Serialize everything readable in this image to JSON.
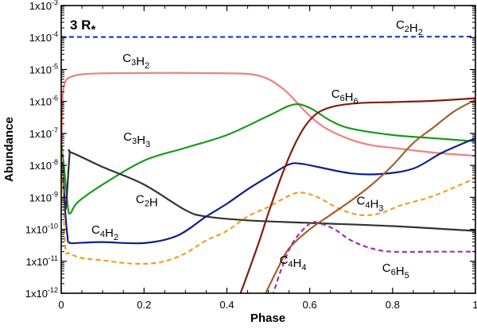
{
  "chart_data": {
    "type": "line",
    "title": "",
    "panel_label": "3 R",
    "panel_label_star": "*",
    "xlabel": "Phase",
    "ylabel": "Abundance",
    "xlim": [
      0,
      1
    ],
    "ylim_log10": [
      -12,
      -3
    ],
    "x_ticks": [
      0,
      0.2,
      0.4,
      0.6,
      0.8,
      1
    ],
    "x_tick_labels": [
      "0",
      "0.2",
      "0.4",
      "0.6",
      "0.8",
      "1"
    ],
    "y_tick_exponents": [
      -12,
      -11,
      -10,
      -9,
      -8,
      -7,
      -6,
      -5,
      -4,
      -3
    ],
    "y_tick_mantissa": "1x10",
    "y_scale": "log",
    "grid": false,
    "series": [
      {
        "key": "c2h2",
        "name": "C2H2",
        "label_main": [
          "C",
          "H"
        ],
        "label_subs": [
          "2",
          "2"
        ],
        "color": "#1a3fd0",
        "dash": true,
        "points": [
          [
            0,
            -3.98
          ],
          [
            0.1,
            -3.985
          ],
          [
            0.3,
            -3.985
          ],
          [
            0.5,
            -3.98
          ],
          [
            0.7,
            -3.975
          ],
          [
            0.85,
            -3.975
          ],
          [
            1,
            -3.97
          ]
        ]
      },
      {
        "key": "c3h2",
        "name": "C3H2",
        "label_main": [
          "C",
          "H"
        ],
        "label_subs": [
          "3",
          "2"
        ],
        "color": "#f08080",
        "dash": false,
        "points": [
          [
            0.001,
            -7.5
          ],
          [
            0.003,
            -6.0
          ],
          [
            0.008,
            -5.45
          ],
          [
            0.02,
            -5.25
          ],
          [
            0.05,
            -5.15
          ],
          [
            0.1,
            -5.12
          ],
          [
            0.2,
            -5.11
          ],
          [
            0.3,
            -5.11
          ],
          [
            0.4,
            -5.12
          ],
          [
            0.46,
            -5.15
          ],
          [
            0.5,
            -5.3
          ],
          [
            0.54,
            -5.65
          ],
          [
            0.57,
            -6.05
          ],
          [
            0.6,
            -6.45
          ],
          [
            0.64,
            -6.85
          ],
          [
            0.7,
            -7.2
          ],
          [
            0.75,
            -7.37
          ],
          [
            0.8,
            -7.45
          ],
          [
            0.9,
            -7.6
          ],
          [
            1,
            -7.7
          ]
        ]
      },
      {
        "key": "c3h3",
        "name": "C3H3",
        "label_main": [
          "C",
          "H"
        ],
        "label_subs": [
          "3",
          "3"
        ],
        "color": "#1a9a1a",
        "dash": false,
        "points": [
          [
            0.001,
            -7.4
          ],
          [
            0.008,
            -8.2
          ],
          [
            0.016,
            -9.3
          ],
          [
            0.022,
            -9.5
          ],
          [
            0.04,
            -9.15
          ],
          [
            0.1,
            -8.6
          ],
          [
            0.2,
            -7.85
          ],
          [
            0.3,
            -7.45
          ],
          [
            0.4,
            -7.05
          ],
          [
            0.5,
            -6.45
          ],
          [
            0.56,
            -6.1
          ],
          [
            0.6,
            -6.2
          ],
          [
            0.65,
            -6.6
          ],
          [
            0.7,
            -6.85
          ],
          [
            0.8,
            -7.05
          ],
          [
            0.9,
            -7.15
          ],
          [
            1,
            -7.25
          ]
        ]
      },
      {
        "key": "c2h",
        "name": "C2H",
        "label_main": [
          "C",
          "H"
        ],
        "label_subs": [
          "2",
          ""
        ],
        "color": "#333333",
        "dash": false,
        "points": [
          [
            0.001,
            -7.8
          ],
          [
            0.006,
            -8.6
          ],
          [
            0.011,
            -9.35
          ],
          [
            0.02,
            -7.7
          ],
          [
            0.025,
            -7.6
          ],
          [
            0.1,
            -8.05
          ],
          [
            0.2,
            -8.6
          ],
          [
            0.3,
            -9.4
          ],
          [
            0.35,
            -9.6
          ],
          [
            0.45,
            -9.72
          ],
          [
            0.6,
            -9.8
          ],
          [
            0.8,
            -9.9
          ],
          [
            1,
            -10.05
          ]
        ]
      },
      {
        "key": "c4h2",
        "name": "C4H2",
        "label_main": [
          "C",
          "H"
        ],
        "label_subs": [
          "4",
          "2"
        ],
        "color": "#0f1f8a",
        "dash": false,
        "points": [
          [
            0.001,
            -7.6
          ],
          [
            0.005,
            -8.5
          ],
          [
            0.01,
            -9.5
          ],
          [
            0.015,
            -10.2
          ],
          [
            0.02,
            -10.42
          ],
          [
            0.05,
            -10.42
          ],
          [
            0.1,
            -10.4
          ],
          [
            0.2,
            -10.43
          ],
          [
            0.28,
            -10.2
          ],
          [
            0.35,
            -9.6
          ],
          [
            0.4,
            -9.2
          ],
          [
            0.45,
            -8.75
          ],
          [
            0.5,
            -8.35
          ],
          [
            0.55,
            -7.97
          ],
          [
            0.58,
            -7.95
          ],
          [
            0.62,
            -8.05
          ],
          [
            0.7,
            -8.25
          ],
          [
            0.77,
            -8.27
          ],
          [
            0.85,
            -8.1
          ],
          [
            0.92,
            -7.6
          ],
          [
            1,
            -7.15
          ]
        ]
      },
      {
        "key": "c4h3",
        "name": "C4H3",
        "label_main": [
          "C",
          "H"
        ],
        "label_subs": [
          "4",
          "3"
        ],
        "color": "#f0a020",
        "dash": true,
        "points": [
          [
            0.001,
            -7.5
          ],
          [
            0.005,
            -9.0
          ],
          [
            0.01,
            -10.6
          ],
          [
            0.02,
            -10.75
          ],
          [
            0.05,
            -10.9
          ],
          [
            0.1,
            -10.97
          ],
          [
            0.15,
            -11.05
          ],
          [
            0.2,
            -11.08
          ],
          [
            0.25,
            -11.0
          ],
          [
            0.3,
            -10.75
          ],
          [
            0.35,
            -10.35
          ],
          [
            0.4,
            -10.05
          ],
          [
            0.45,
            -9.6
          ],
          [
            0.5,
            -9.3
          ],
          [
            0.55,
            -8.95
          ],
          [
            0.58,
            -8.85
          ],
          [
            0.62,
            -9.0
          ],
          [
            0.67,
            -9.35
          ],
          [
            0.72,
            -9.55
          ],
          [
            0.77,
            -9.5
          ],
          [
            0.82,
            -9.25
          ],
          [
            0.9,
            -8.95
          ],
          [
            1,
            -8.4
          ]
        ]
      },
      {
        "key": "c6h6",
        "name": "C6H6",
        "label_main": [
          "C",
          "H"
        ],
        "label_subs": [
          "6",
          "6"
        ],
        "color": "#801f10",
        "dash": false,
        "points": [
          [
            0.43,
            -12.1
          ],
          [
            0.45,
            -11.4
          ],
          [
            0.48,
            -10.3
          ],
          [
            0.5,
            -9.5
          ],
          [
            0.53,
            -8.4
          ],
          [
            0.56,
            -7.45
          ],
          [
            0.59,
            -6.75
          ],
          [
            0.62,
            -6.35
          ],
          [
            0.66,
            -6.15
          ],
          [
            0.72,
            -6.05
          ],
          [
            0.8,
            -6.02
          ],
          [
            0.9,
            -5.98
          ],
          [
            1,
            -5.9
          ]
        ]
      },
      {
        "key": "c4h4",
        "name": "C4H4",
        "label_main": [
          "C",
          "H"
        ],
        "label_subs": [
          "4",
          "4"
        ],
        "color": "#a0622a",
        "dash": false,
        "points": [
          [
            0.49,
            -12.1
          ],
          [
            0.52,
            -11.3
          ],
          [
            0.55,
            -10.6
          ],
          [
            0.6,
            -10.0
          ],
          [
            0.65,
            -9.55
          ],
          [
            0.7,
            -9.1
          ],
          [
            0.75,
            -8.6
          ],
          [
            0.8,
            -8.0
          ],
          [
            0.85,
            -7.3
          ],
          [
            0.9,
            -6.8
          ],
          [
            0.95,
            -6.3
          ],
          [
            1,
            -5.95
          ]
        ]
      },
      {
        "key": "c6h5",
        "name": "C6H5",
        "label_main": [
          "C",
          "H"
        ],
        "label_subs": [
          "6",
          "5"
        ],
        "color": "#a030b0",
        "dash": true,
        "points": [
          [
            0.51,
            -12.1
          ],
          [
            0.53,
            -11.3
          ],
          [
            0.56,
            -10.4
          ],
          [
            0.6,
            -9.82
          ],
          [
            0.62,
            -9.8
          ],
          [
            0.66,
            -10.0
          ],
          [
            0.7,
            -10.35
          ],
          [
            0.75,
            -10.6
          ],
          [
            0.8,
            -10.7
          ],
          [
            0.9,
            -10.7
          ],
          [
            1,
            -10.7
          ]
        ]
      }
    ],
    "annotations": [
      {
        "series": "c2h2",
        "x": 0.808,
        "y": -3.72
      },
      {
        "series": "c3h2",
        "x": 0.148,
        "y": -4.77
      },
      {
        "series": "c6h6",
        "x": 0.652,
        "y": -5.89
      },
      {
        "series": "c3h3",
        "x": 0.15,
        "y": -7.23
      },
      {
        "series": "c2h",
        "x": 0.18,
        "y": -9.18
      },
      {
        "series": "c4h3",
        "x": 0.713,
        "y": -9.23
      },
      {
        "series": "c4h2",
        "x": 0.073,
        "y": -10.13
      },
      {
        "series": "c4h4",
        "x": 0.527,
        "y": -11.08
      },
      {
        "series": "c6h5",
        "x": 0.775,
        "y": -11.33
      }
    ]
  }
}
